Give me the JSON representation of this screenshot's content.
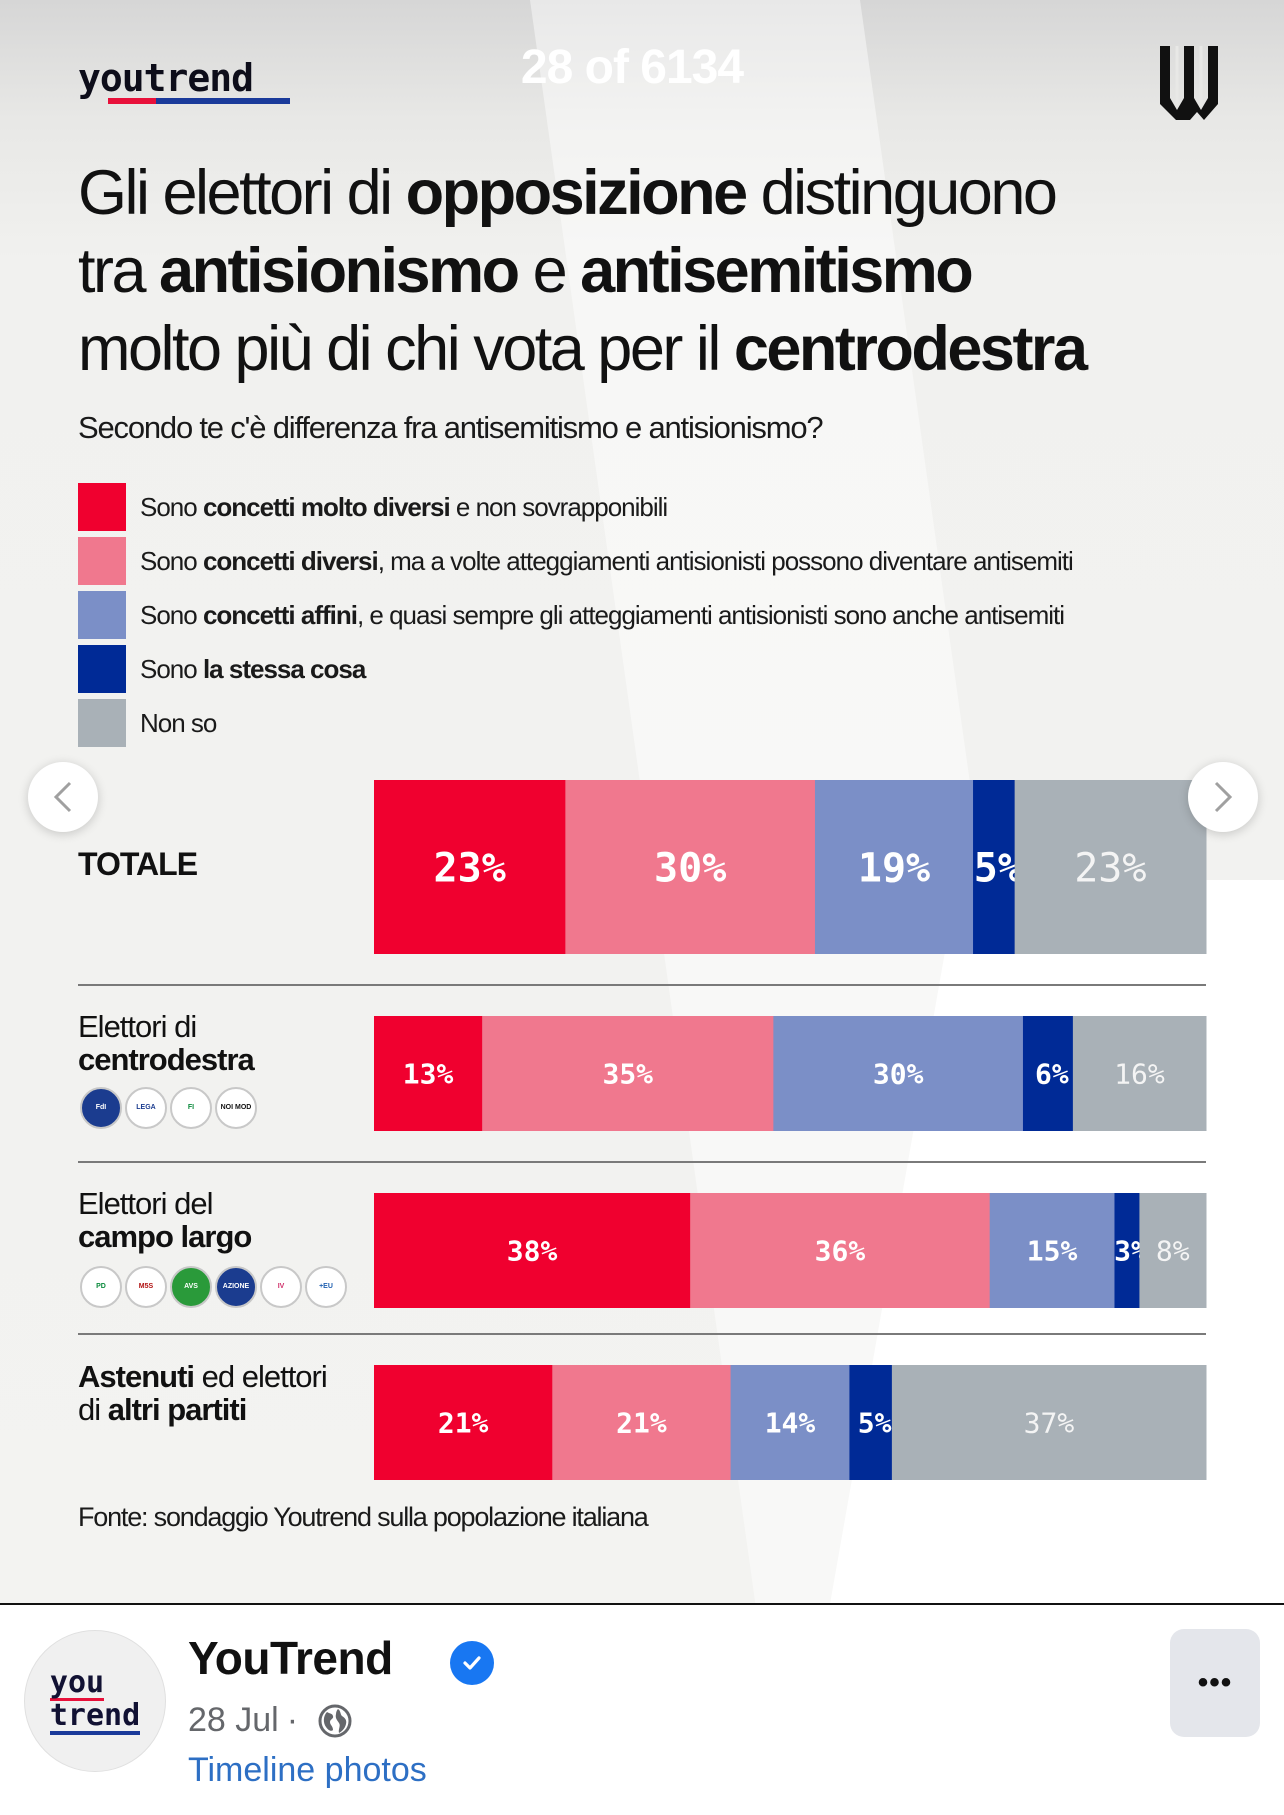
{
  "viewer": {
    "counter": "28 of 6134",
    "prev_icon": "chevron-left-icon",
    "next_icon": "chevron-right-icon"
  },
  "slide": {
    "brand_wordmark": "youtrend",
    "title_parts": [
      {
        "text": "Gli elettori di ",
        "bold": false
      },
      {
        "text": "opposizione",
        "bold": true
      },
      {
        "text": " distinguono",
        "bold": false
      },
      {
        "text": "\n",
        "bold": false
      },
      {
        "text": "tra ",
        "bold": false
      },
      {
        "text": "antisionismo",
        "bold": true
      },
      {
        "text": " e ",
        "bold": false
      },
      {
        "text": "antisemitismo",
        "bold": true
      },
      {
        "text": "\n",
        "bold": false
      },
      {
        "text": "molto più di chi vota per il ",
        "bold": false
      },
      {
        "text": "centrodestra",
        "bold": true
      }
    ],
    "question": "Secondo te c'è differenza fra antisemitismo e antisionismo?",
    "source": "Fonte: sondaggio Youtrend sulla popolazione italiana"
  },
  "chart_data": {
    "type": "bar",
    "orientation": "horizontal",
    "stacked": true,
    "title": "Gli elettori di opposizione distinguono tra antisionismo e antisemitismo molto più di chi vota per il centrodestra",
    "subtitle": "Secondo te c'è differenza fra antisemitismo e antisionismo?",
    "xlim": [
      0,
      100
    ],
    "unit": "%",
    "legend_position": "top",
    "legend": [
      {
        "name": "molto diversi",
        "parts": [
          {
            "t": "Sono ",
            "b": false
          },
          {
            "t": "concetti molto diversi",
            "b": true
          },
          {
            "t": " e non sovrapponibili",
            "b": false
          }
        ],
        "color": "#f0002f"
      },
      {
        "name": "diversi",
        "parts": [
          {
            "t": "Sono ",
            "b": false
          },
          {
            "t": "concetti diversi",
            "b": true
          },
          {
            "t": ", ma a volte atteggiamenti antisionisti possono diventare antisemiti",
            "b": false
          }
        ],
        "color": "#f0788e"
      },
      {
        "name": "affini",
        "parts": [
          {
            "t": "Sono ",
            "b": false
          },
          {
            "t": "concetti affini",
            "b": true
          },
          {
            "t": ", e quasi sempre gli atteggiamenti antisionisti sono anche antisemiti",
            "b": false
          }
        ],
        "color": "#7b8fc7"
      },
      {
        "name": "stessa cosa",
        "parts": [
          {
            "t": "Sono ",
            "b": false
          },
          {
            "t": "la stessa cosa",
            "b": true
          }
        ],
        "color": "#002a96"
      },
      {
        "name": "non so",
        "parts": [
          {
            "t": "Non so",
            "b": false
          }
        ],
        "color": "#a9b1b7"
      }
    ],
    "categories": [
      "TOTALE",
      "Elettori di centrodestra",
      "Elettori del campo largo",
      "Astenuti ed elettori di altri partiti"
    ],
    "category_labels": [
      {
        "parts": [
          {
            "t": "TOTALE",
            "b": true
          }
        ]
      },
      {
        "parts": [
          {
            "t": "Elettori di",
            "b": false
          },
          {
            "t": "\n",
            "b": false
          },
          {
            "t": "centrodestra",
            "b": true
          }
        ],
        "logos": [
          "Fratelli d'Italia Meloni",
          "Lega Salvini",
          "Forza Italia Berlusconi",
          "Noi Moderati"
        ]
      },
      {
        "parts": [
          {
            "t": "Elettori del",
            "b": false
          },
          {
            "t": "\n",
            "b": false
          },
          {
            "t": "campo largo",
            "b": true
          }
        ],
        "logos": [
          "PD",
          "Movimento 5 Stelle",
          "Alleanza Verdi Sinistra",
          "Azione Calenda",
          "Italia Viva",
          "+Europa"
        ]
      },
      {
        "parts": [
          {
            "t": "Astenuti",
            "b": true
          },
          {
            "t": " ed elettori",
            "b": false
          },
          {
            "t": "\n",
            "b": false
          },
          {
            "t": "di ",
            "b": false
          },
          {
            "t": "altri partiti",
            "b": true
          }
        ]
      }
    ],
    "series": [
      {
        "name": "Sono concetti molto diversi e non sovrapponibili",
        "values": [
          23,
          13,
          38,
          21
        ]
      },
      {
        "name": "Sono concetti diversi, ma a volte atteggiamenti antisionisti possono diventare antisemiti",
        "values": [
          30,
          35,
          36,
          21
        ]
      },
      {
        "name": "Sono concetti affini, e quasi sempre gli atteggiamenti antisionisti sono anche antisemiti",
        "values": [
          19,
          30,
          15,
          14
        ]
      },
      {
        "name": "Sono la stessa cosa",
        "values": [
          5,
          6,
          3,
          5
        ]
      },
      {
        "name": "Non so",
        "values": [
          23,
          16,
          8,
          37
        ]
      }
    ],
    "label_colors": [
      "#ffffff",
      "#ffffff",
      "#ffffff",
      "#ffffff",
      "#f4f4f4"
    ]
  },
  "post": {
    "avatar_line1": "you",
    "avatar_line2": "trend",
    "page_name": "YouTrend",
    "verified": true,
    "date": "28 Jul",
    "separator": "·",
    "audience_icon": "globe-icon",
    "album_link": "Timeline photos",
    "more_label": "•••"
  }
}
